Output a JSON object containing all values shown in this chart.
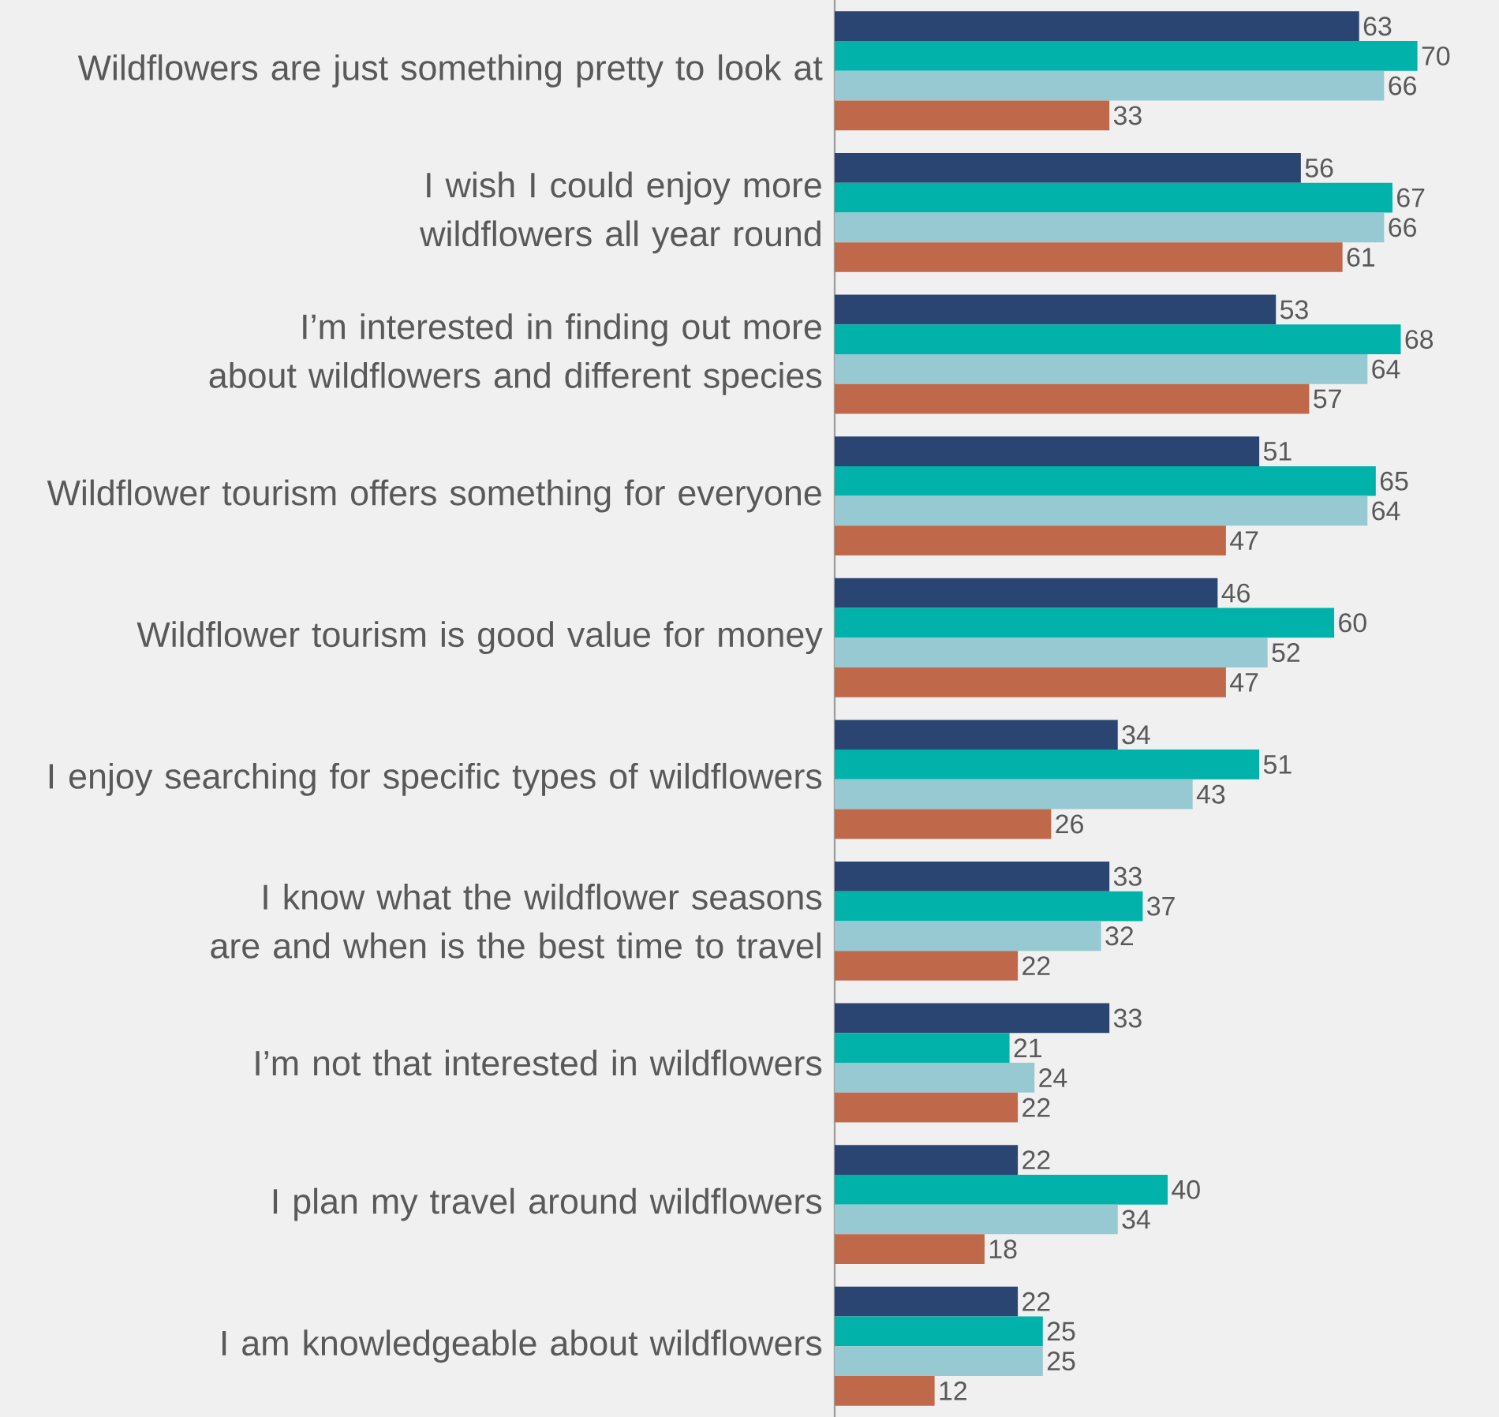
{
  "chart_data": {
    "type": "bar",
    "orientation": "horizontal",
    "tick_labels": "y",
    "categories": [
      "Wildflowers are just something pretty to look at",
      "I wish I could enjoy more wildflowers all year round",
      "I’m interested in finding out more about wildflowers and different species",
      "Wildflower tourism offers something for everyone",
      "Wildflower tourism is good value for money",
      "I enjoy searching for specific types of wildflowers",
      "I know what the wildflower seasons are and when is the best time to travel",
      "I’m not that interested in wildflowers",
      "I plan my travel around wildflowers",
      "I am knowledgeable about wildflowers"
    ],
    "series": [
      {
        "color": "#2b4572",
        "values": [
          63,
          56,
          53,
          51,
          46,
          34,
          33,
          33,
          22,
          22
        ],
        "value_labels": [
          "63",
          "56",
          "53",
          "51",
          "46",
          "34",
          "33",
          "33",
          "22",
          "22"
        ]
      },
      {
        "color": "#00b2a9",
        "values": [
          70,
          67,
          68,
          65,
          60,
          51,
          37,
          21,
          40,
          25
        ],
        "value_labels": [
          "70",
          "67",
          "68",
          "65",
          "60",
          "51",
          "37",
          "21",
          "40",
          "25"
        ]
      },
      {
        "color": "#96c9d1",
        "values": [
          66,
          66,
          64,
          64,
          52,
          43,
          32,
          24,
          34,
          25
        ],
        "value_labels": [
          "66",
          "66",
          "64",
          "64",
          "52",
          "43",
          "32",
          "24",
          "34",
          "25"
        ]
      },
      {
        "color": "#c0694a",
        "values": [
          33,
          61,
          57,
          47,
          47,
          26,
          22,
          22,
          18,
          12
        ],
        "value_labels": [
          "33",
          "61",
          "57",
          "47",
          "47",
          "26",
          "22",
          "22",
          "18",
          "12"
        ]
      }
    ]
  }
}
